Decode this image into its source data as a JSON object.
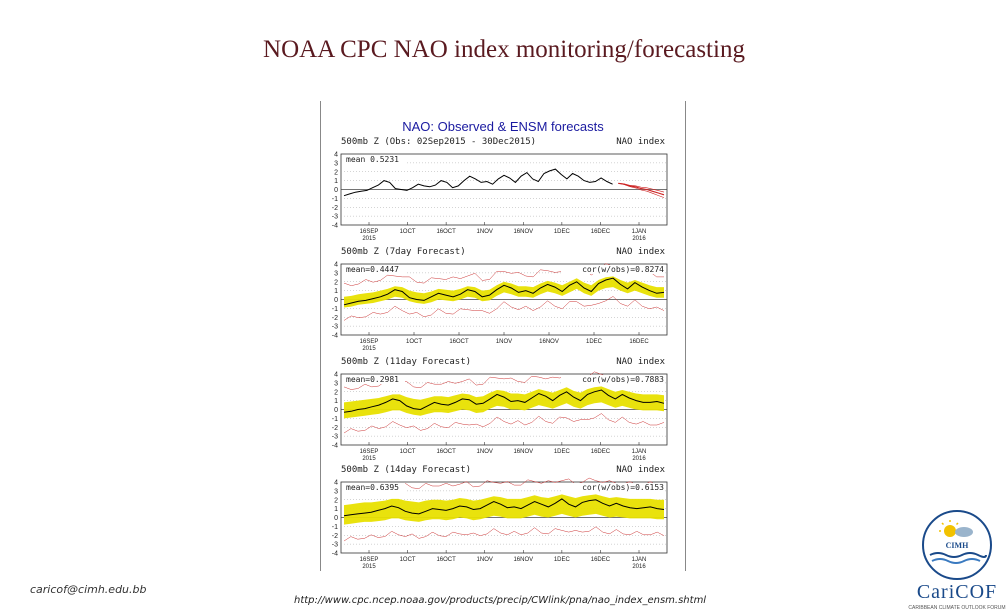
{
  "page_title": "NOAA CPC NAO index monitoring/forecasting",
  "figure_title": "NAO: Observed & ENSM forecasts",
  "footer": {
    "email": "caricof@cimh.edu.bb",
    "url": "http://www.cpc.ncep.noaa.gov/products/precip/CWlink/pna/nao_index_ensm.shtml"
  },
  "logo": {
    "badge_text": "CIMH",
    "word": "CariCOF",
    "subtitle": "CARIBBEAN CLIMATE OUTLOOK FORUM"
  },
  "colors": {
    "title": "#5a1a20",
    "figure_title": "#1a1aa0",
    "observed": "#000000",
    "spread": "#e8e000",
    "forecast_mean": "#cc2222",
    "outlier": "#cc3333"
  },
  "chart_data": [
    {
      "type": "line",
      "panel_title": "500mb Z (Obs: 02Sep2015 - 30Dec2015)",
      "panel_label": "NAO index",
      "mean_label": "mean 0.5231",
      "corr_label": "",
      "y_ticks": [
        "4",
        "3",
        "2",
        "1",
        "0",
        "-1",
        "-2",
        "-3",
        "-4"
      ],
      "ylim": [
        -4,
        4
      ],
      "x_ticks": [
        {
          "label": "16SEP",
          "year": "2015"
        },
        {
          "label": "1OCT",
          "year": ""
        },
        {
          "label": "16OCT",
          "year": ""
        },
        {
          "label": "1NOV",
          "year": ""
        },
        {
          "label": "16NOV",
          "year": ""
        },
        {
          "label": "1DEC",
          "year": ""
        },
        {
          "label": "16DEC",
          "year": ""
        },
        {
          "label": "1JAN",
          "year": "2016"
        }
      ],
      "observed": [
        -0.7,
        -0.5,
        -0.3,
        -0.2,
        -0.1,
        0.2,
        0.5,
        1.0,
        0.8,
        0.1,
        0.0,
        -0.1,
        0.2,
        0.6,
        0.4,
        0.3,
        0.5,
        1.0,
        0.8,
        0.2,
        0.4,
        1.0,
        1.5,
        1.2,
        0.8,
        0.9,
        0.6,
        1.2,
        1.6,
        1.3,
        0.8,
        1.5,
        1.9,
        1.2,
        0.9,
        1.8,
        2.1,
        2.3,
        1.7,
        1.2,
        1.8,
        1.5,
        1.0,
        0.8,
        0.9,
        1.3,
        0.9,
        0.6
      ],
      "forecast": [
        0.7,
        0.6,
        0.4,
        0.3,
        0.1,
        0.0,
        -0.2,
        -0.4,
        -0.6
      ],
      "spread": null
    },
    {
      "type": "line",
      "panel_title": "500mb Z (7day Forecast)",
      "panel_label": "NAO index",
      "mean_label": "mean=0.4447",
      "corr_label": "cor(w/obs)=0.8274",
      "y_ticks": [
        "4",
        "3",
        "2",
        "1",
        "0",
        "-1",
        "-2",
        "-3",
        "-4"
      ],
      "ylim": [
        -4,
        4
      ],
      "x_ticks": [
        {
          "label": "16SEP",
          "year": "2015"
        },
        {
          "label": "1OCT",
          "year": ""
        },
        {
          "label": "16OCT",
          "year": ""
        },
        {
          "label": "1NOV",
          "year": ""
        },
        {
          "label": "16NOV",
          "year": ""
        },
        {
          "label": "1DEC",
          "year": ""
        },
        {
          "label": "16DEC",
          "year": ""
        }
      ],
      "observed": [
        -0.6,
        -0.4,
        -0.2,
        -0.1,
        0.1,
        0.3,
        0.6,
        1.1,
        0.9,
        0.2,
        0.0,
        -0.1,
        0.3,
        0.7,
        0.5,
        0.3,
        0.6,
        1.1,
        0.9,
        0.3,
        0.5,
        1.1,
        1.6,
        1.3,
        0.8,
        1.0,
        0.7,
        1.3,
        1.7,
        1.4,
        0.9,
        1.6,
        2.0,
        1.3,
        0.9,
        1.8,
        2.2,
        2.4,
        1.7,
        1.2,
        1.9,
        1.4,
        1.0,
        0.7,
        0.8
      ],
      "spread": {
        "center": [
          -0.3,
          -0.2,
          0.0,
          0.1,
          0.2,
          0.4,
          0.6,
          0.9,
          0.8,
          0.4,
          0.2,
          0.1,
          0.3,
          0.6,
          0.5,
          0.4,
          0.6,
          0.9,
          0.8,
          0.4,
          0.5,
          1.0,
          1.4,
          1.2,
          0.9,
          0.9,
          0.8,
          1.2,
          1.5,
          1.3,
          1.0,
          1.4,
          1.8,
          1.3,
          1.0,
          1.6,
          1.9,
          2.0,
          1.6,
          1.3,
          1.6,
          1.3,
          1.0,
          0.8,
          0.8
        ],
        "width": 0.6
      },
      "outer_width": 1.9
    },
    {
      "type": "line",
      "panel_title": "500mb Z (11day Forecast)",
      "panel_label": "NAO index",
      "mean_label": "mean=0.2981",
      "corr_label": "cor(w/obs)=0.7883",
      "y_ticks": [
        "4",
        "3",
        "2",
        "1",
        "0",
        "-1",
        "-2",
        "-3",
        "-4"
      ],
      "ylim": [
        -4,
        4
      ],
      "x_ticks": [
        {
          "label": "16SEP",
          "year": "2015"
        },
        {
          "label": "1OCT",
          "year": ""
        },
        {
          "label": "16OCT",
          "year": ""
        },
        {
          "label": "1NOV",
          "year": ""
        },
        {
          "label": "16NOV",
          "year": ""
        },
        {
          "label": "1DEC",
          "year": ""
        },
        {
          "label": "16DEC",
          "year": ""
        },
        {
          "label": "1JAN",
          "year": "2016"
        }
      ],
      "observed": [
        -0.3,
        -0.2,
        0.0,
        0.1,
        0.3,
        0.5,
        0.8,
        1.2,
        1.0,
        0.4,
        0.1,
        0.0,
        0.4,
        0.8,
        0.6,
        0.5,
        0.8,
        1.2,
        1.1,
        0.6,
        0.7,
        1.2,
        1.7,
        1.4,
        0.9,
        1.0,
        0.8,
        1.3,
        1.8,
        1.5,
        1.0,
        1.6,
        2.0,
        1.4,
        1.0,
        1.7,
        2.0,
        2.2,
        1.6,
        1.2,
        1.7,
        1.3,
        1.0,
        0.8,
        0.8,
        0.9,
        0.7
      ],
      "spread": {
        "center": [
          -0.1,
          0.0,
          0.1,
          0.2,
          0.3,
          0.4,
          0.6,
          0.8,
          0.8,
          0.5,
          0.3,
          0.2,
          0.4,
          0.6,
          0.6,
          0.5,
          0.7,
          0.9,
          0.8,
          0.5,
          0.6,
          1.0,
          1.3,
          1.2,
          0.9,
          0.9,
          0.8,
          1.1,
          1.4,
          1.2,
          1.0,
          1.3,
          1.6,
          1.2,
          1.0,
          1.4,
          1.6,
          1.7,
          1.4,
          1.1,
          1.3,
          1.1,
          0.9,
          0.8,
          0.8,
          0.8,
          0.7
        ],
        "width": 0.9
      },
      "outer_width": 2.4
    },
    {
      "type": "line",
      "panel_title": "500mb Z (14day Forecast)",
      "panel_label": "NAO index",
      "mean_label": "mean=0.6395",
      "corr_label": "cor(w/obs)=0.6153",
      "y_ticks": [
        "4",
        "3",
        "2",
        "1",
        "0",
        "-1",
        "-2",
        "-3",
        "-4"
      ],
      "ylim": [
        -4,
        4
      ],
      "x_ticks": [
        {
          "label": "16SEP",
          "year": "2015"
        },
        {
          "label": "1OCT",
          "year": ""
        },
        {
          "label": "16OCT",
          "year": ""
        },
        {
          "label": "1NOV",
          "year": ""
        },
        {
          "label": "16NOV",
          "year": ""
        },
        {
          "label": "1DEC",
          "year": ""
        },
        {
          "label": "16DEC",
          "year": ""
        },
        {
          "label": "1JAN",
          "year": "2016"
        }
      ],
      "observed": [
        0.2,
        0.3,
        0.4,
        0.5,
        0.6,
        0.8,
        1.0,
        1.3,
        1.1,
        0.7,
        0.5,
        0.4,
        0.7,
        1.0,
        0.9,
        0.8,
        1.0,
        1.3,
        1.2,
        0.9,
        1.0,
        1.4,
        1.8,
        1.5,
        1.1,
        1.2,
        1.0,
        1.4,
        1.8,
        1.5,
        1.2,
        1.6,
        2.1,
        1.5,
        1.2,
        1.7,
        1.9,
        2.0,
        1.6,
        1.3,
        1.6,
        1.3,
        1.1,
        1.0,
        1.1,
        1.2,
        1.0,
        0.9
      ],
      "spread": {
        "center": [
          0.3,
          0.4,
          0.5,
          0.6,
          0.6,
          0.7,
          0.8,
          1.0,
          1.0,
          0.8,
          0.7,
          0.6,
          0.8,
          0.9,
          0.9,
          0.8,
          0.9,
          1.1,
          1.0,
          0.8,
          0.9,
          1.1,
          1.3,
          1.2,
          1.0,
          1.0,
          1.0,
          1.2,
          1.4,
          1.2,
          1.1,
          1.3,
          1.5,
          1.3,
          1.1,
          1.3,
          1.4,
          1.5,
          1.3,
          1.1,
          1.2,
          1.1,
          1.0,
          1.0,
          1.0,
          1.0,
          0.9,
          0.9
        ],
        "width": 1.1
      },
      "outer_width": 2.8
    }
  ]
}
